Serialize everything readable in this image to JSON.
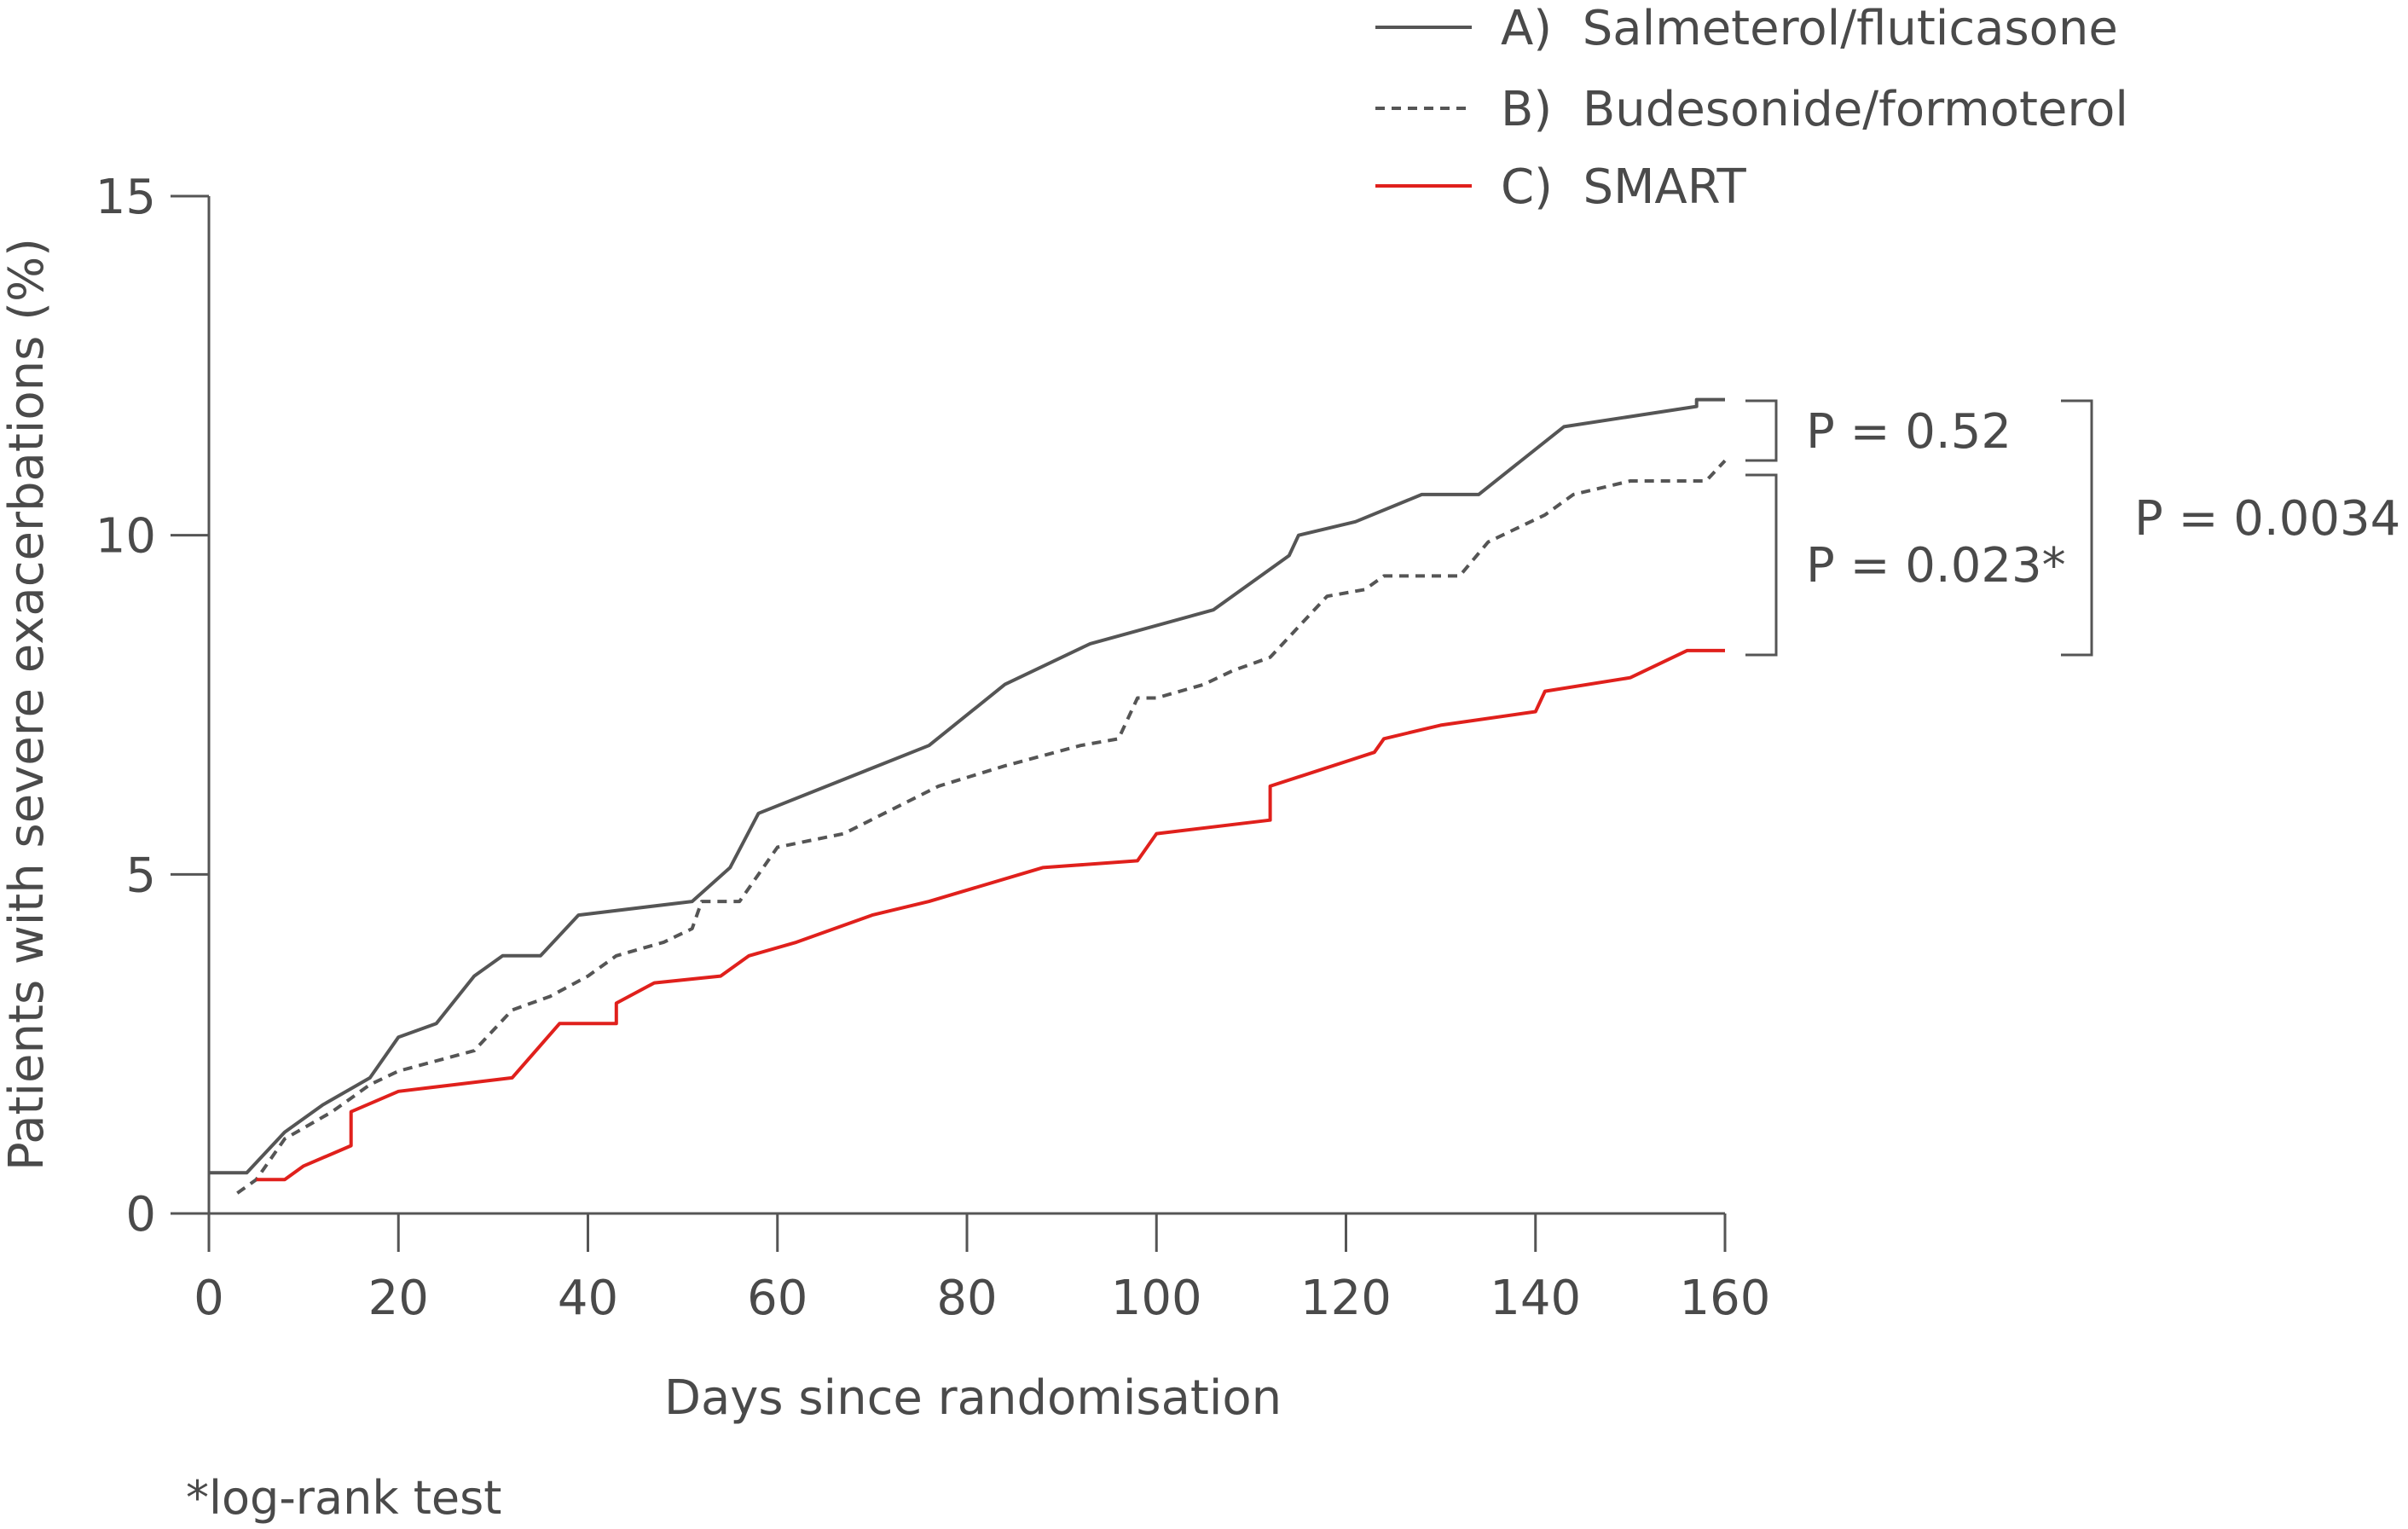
{
  "chart_data": {
    "type": "line",
    "xlabel": "Days since randomisation",
    "ylabel": "Patients with severe exacerbations (%)",
    "xlim": [
      0,
      160
    ],
    "ylim": [
      0,
      15
    ],
    "xticks": [
      "0",
      "20",
      "40",
      "60",
      "80",
      "100",
      "120",
      "140",
      "160"
    ],
    "yticks": [
      "0",
      "5",
      "10",
      "15"
    ],
    "grid": false,
    "legend_position": "top-right",
    "series": [
      {
        "name": "A)  Salmeterol/fluticasone",
        "style": "solid",
        "color": "#555555",
        "x": [
          0,
          4,
          8,
          12,
          17,
          20,
          24,
          28,
          31,
          35,
          39,
          51,
          55,
          58,
          76,
          84,
          93,
          106,
          114,
          115,
          121,
          128,
          134,
          143,
          157,
          157,
          160
        ],
        "y": [
          0.6,
          0.6,
          1.2,
          1.6,
          2.0,
          2.6,
          2.8,
          3.5,
          3.8,
          3.8,
          4.4,
          4.6,
          5.1,
          5.9,
          6.9,
          7.8,
          8.4,
          8.9,
          9.7,
          10.0,
          10.2,
          10.6,
          10.6,
          11.6,
          11.9,
          12.0,
          12.0
        ]
      },
      {
        "name": "B)  Budesonide/formoterol",
        "style": "dashed",
        "color": "#555555",
        "x": [
          3,
          5,
          8,
          13,
          17,
          20,
          28,
          32,
          36,
          40,
          43,
          48,
          51,
          52,
          56,
          60,
          67,
          77,
          84,
          92,
          96,
          98,
          100,
          105,
          108,
          112,
          116,
          118,
          122,
          124,
          132,
          135,
          138,
          141,
          144,
          150,
          158,
          160
        ],
        "y": [
          0.3,
          0.5,
          1.1,
          1.5,
          1.9,
          2.1,
          2.4,
          3.0,
          3.2,
          3.5,
          3.8,
          4.0,
          4.2,
          4.6,
          4.6,
          5.4,
          5.6,
          6.3,
          6.6,
          6.9,
          7.0,
          7.6,
          7.6,
          7.8,
          8.0,
          8.2,
          8.8,
          9.1,
          9.2,
          9.4,
          9.4,
          9.9,
          10.1,
          10.3,
          10.6,
          10.8,
          10.8,
          11.1
        ]
      },
      {
        "name": "C)  SMART",
        "style": "solid",
        "color": "#e0201c",
        "x": [
          5,
          8,
          10,
          15,
          15,
          20,
          32,
          37,
          43,
          43,
          47,
          54,
          57,
          62,
          70,
          76,
          88,
          98,
          100,
          112,
          112,
          123,
          124,
          130,
          140,
          141,
          150,
          156,
          160
        ],
        "y": [
          0.5,
          0.5,
          0.7,
          1.0,
          1.5,
          1.8,
          2.0,
          2.8,
          2.8,
          3.1,
          3.4,
          3.5,
          3.8,
          4.0,
          4.4,
          4.6,
          5.1,
          5.2,
          5.6,
          5.8,
          6.3,
          6.8,
          7.0,
          7.2,
          7.4,
          7.7,
          7.9,
          8.3,
          8.3
        ]
      }
    ],
    "annotations": [
      {
        "text": "P = 0.52",
        "compares": [
          "A",
          "B"
        ]
      },
      {
        "text": "P = 0.023*",
        "compares": [
          "B",
          "C"
        ]
      },
      {
        "text": "P = 0.0034",
        "compares": [
          "A",
          "C"
        ]
      }
    ],
    "footnote": "*log-rank test"
  }
}
